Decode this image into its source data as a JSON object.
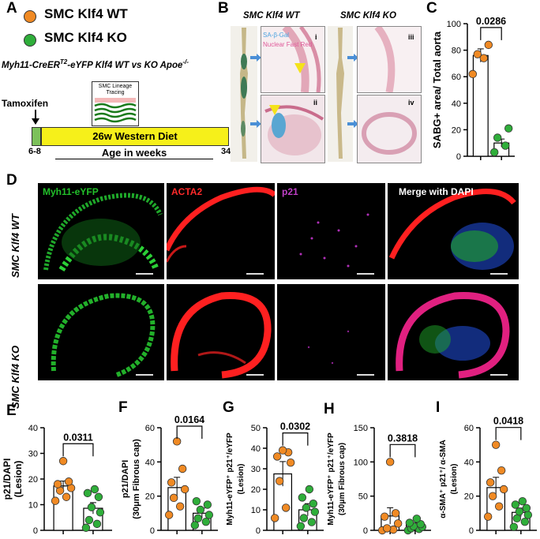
{
  "panels": {
    "A": {
      "letter": "A",
      "legend": [
        {
          "label": "SMC Klf4 WT",
          "color": "#f08a24"
        },
        {
          "label": "SMC Klf4 KO",
          "color": "#2fae3a"
        }
      ],
      "model_title": "Myh11-CreER^T2-eYFP Klf4 WT vs KO Apoe-/-",
      "model_prefix": "Myh11-CreER",
      "model_sup": "T2",
      "model_suffix": "-eYFP Klf4 WT vs KO Apoe",
      "model_sup2": "-/-",
      "lineage_label": "SMC Lineage Tracing",
      "tamoxifen": "Tamoxifen",
      "diet": "26w Western Diet",
      "start_age": "6-8",
      "end_age": "34",
      "axis_label": "Age in weeks"
    },
    "B": {
      "letter": "B",
      "wt_title": "SMC Klf4 WT",
      "ko_title": "SMC Klf4 KO",
      "stain_1": "SA-β-Gal",
      "stain_2": "Nuclear Fast Red",
      "tiles": [
        "i",
        "ii",
        "iii",
        "iv"
      ]
    },
    "C": {
      "letter": "C"
    },
    "D": {
      "letter": "D",
      "channels": [
        {
          "label": "Myh11-eYFP",
          "color": "#22c02a"
        },
        {
          "label": "ACTA2",
          "color": "#ff2a2a"
        },
        {
          "label": "p21",
          "color": "#c040c8"
        },
        {
          "label": "Merge with DAPI",
          "color": "#ffffff"
        }
      ],
      "rows": [
        "SMC Klf4 WT",
        "SMC Klf4 KO"
      ]
    },
    "E": {
      "letter": "E"
    },
    "F": {
      "letter": "F"
    },
    "G": {
      "letter": "G"
    },
    "H": {
      "letter": "H"
    },
    "I": {
      "letter": "I"
    }
  },
  "chart_data": [
    {
      "id": "C",
      "type": "bar",
      "categories": [
        "SMC Klf4 WT",
        "SMC Klf4 KO"
      ],
      "ylabel": "SABG+ area/ Total aorta",
      "ylim": [
        0,
        100
      ],
      "yticks": [
        0,
        20,
        40,
        60,
        80,
        100
      ],
      "p_value": "0.0286",
      "bars": [
        76,
        10
      ],
      "errors": [
        5,
        3
      ],
      "points": [
        [
          62,
          74,
          77,
          84
        ],
        [
          3,
          8,
          14,
          21
        ]
      ]
    },
    {
      "id": "E",
      "type": "bar",
      "categories": [
        "SMC Klf4 WT",
        "SMC Klf4 KO"
      ],
      "ylabel": "p21/DAPI",
      "ylabel2": "(Lesion)",
      "ylim": [
        0,
        40
      ],
      "yticks": [
        0,
        10,
        20,
        30,
        40
      ],
      "p_value": "0.0311",
      "bars": [
        17.3,
        8.6
      ],
      "errors": [
        1.9,
        2.2
      ],
      "points": [
        [
          11.5,
          13,
          15.5,
          16.5,
          18,
          19,
          27
        ],
        [
          1,
          2.5,
          4,
          7,
          9,
          13,
          14.5,
          16
        ]
      ]
    },
    {
      "id": "F",
      "type": "bar",
      "categories": [
        "SMC Klf4 WT",
        "SMC Klf4 KO"
      ],
      "ylabel": "p21/DAPI",
      "ylabel2": "(30μm Fibrous cap)",
      "ylim": [
        0,
        60
      ],
      "yticks": [
        0,
        20,
        40,
        60
      ],
      "p_value": "0.0164",
      "bars": [
        25,
        10
      ],
      "errors": [
        6,
        3
      ],
      "points": [
        [
          9,
          14,
          19,
          24,
          28,
          36,
          52
        ],
        [
          3,
          5,
          7,
          9,
          12,
          15,
          17
        ]
      ]
    },
    {
      "id": "G",
      "type": "bar",
      "categories": [
        "SMC Klf4 WT",
        "SMC Klf4 KO"
      ],
      "ylabel": "Myh11-eYFP⁺ p21⁺/eYFP",
      "ylabel2": "(Lesion)",
      "ylim": [
        0,
        50
      ],
      "yticks": [
        0,
        10,
        20,
        30,
        40,
        50
      ],
      "p_value": "0.0302",
      "bars": [
        27.5,
        10
      ],
      "errors": [
        6,
        3
      ],
      "points": [
        [
          6,
          11,
          24,
          33,
          36,
          38,
          39
        ],
        [
          2,
          4,
          6,
          9,
          11,
          13,
          16,
          20
        ]
      ]
    },
    {
      "id": "H",
      "type": "bar",
      "categories": [
        "SMC Klf4 WT",
        "SMC Klf4 KO"
      ],
      "ylabel": "Myh11-eYFP⁺ p21⁺/eYFP",
      "ylabel2": "(30μm Fibrous cap)",
      "ylim": [
        0,
        150
      ],
      "yticks": [
        0,
        50,
        100,
        150
      ],
      "p_value": "0.3818",
      "bars": [
        21,
        8
      ],
      "errors": [
        12,
        3
      ],
      "points": [
        [
          0,
          1,
          3,
          10,
          20,
          25,
          100
        ],
        [
          0,
          2,
          3,
          5,
          6,
          9,
          11,
          17
        ]
      ]
    },
    {
      "id": "I",
      "type": "bar",
      "categories": [
        "SMC Klf4 WT",
        "SMC Klf4 KO"
      ],
      "ylabel": "α-SMA⁺ p21⁺/ α-SMA",
      "ylabel2": "(Lesion)",
      "ylim": [
        0,
        60
      ],
      "yticks": [
        0,
        20,
        40,
        60
      ],
      "p_value": "0.0418",
      "bars": [
        25,
        10.5
      ],
      "errors": [
        6,
        2.5
      ],
      "points": [
        [
          8,
          14,
          20,
          24,
          28,
          35,
          50
        ],
        [
          2,
          5,
          7,
          9,
          11,
          13,
          15,
          17
        ]
      ]
    }
  ]
}
